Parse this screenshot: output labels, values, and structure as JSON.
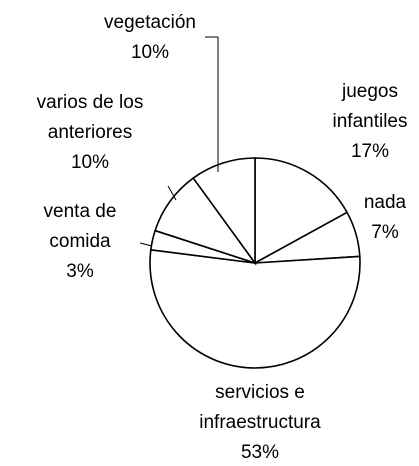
{
  "chart_data": {
    "type": "pie",
    "categories": [
      "juegos infantiles",
      "nada",
      "servicios e infraestructura",
      "venta de comida",
      "varios de los anteriores",
      "vegetación"
    ],
    "values": [
      17,
      7,
      53,
      3,
      10,
      10
    ],
    "value_labels": [
      "17%",
      "7%",
      "53%",
      "3%",
      "10%",
      "10%"
    ],
    "color": "#ffffff"
  }
}
